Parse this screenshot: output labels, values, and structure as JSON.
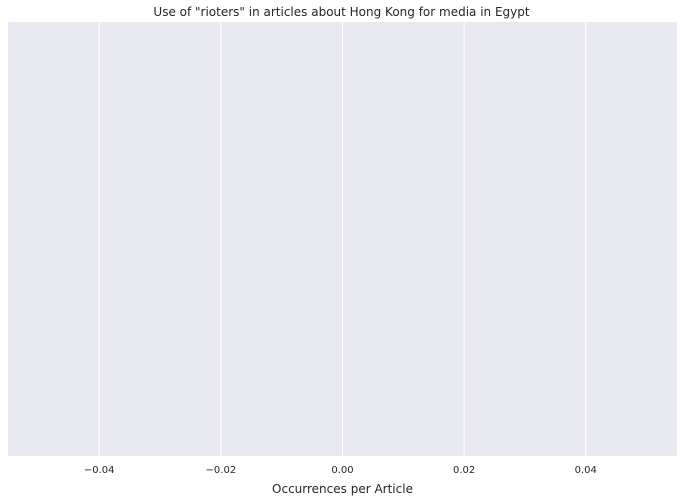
{
  "chart_data": {
    "type": "bar",
    "orientation": "horizontal",
    "title": "Use of \"rioters\" in articles about Hong Kong for media in Egypt",
    "xlabel": "Occurrences per Article",
    "ylabel": "",
    "categories": [],
    "values": [],
    "xlim": [
      -0.055,
      0.055
    ],
    "x_ticks": [
      -0.04,
      -0.02,
      0.0,
      0.02,
      0.04
    ],
    "x_tick_labels": [
      "−0.04",
      "−0.02",
      "0.00",
      "0.02",
      "0.04"
    ],
    "grid": true,
    "legend": "none",
    "colors": {
      "plot_background": "#e8e8f1",
      "grid": "#ffffff",
      "text": "#262626"
    }
  }
}
